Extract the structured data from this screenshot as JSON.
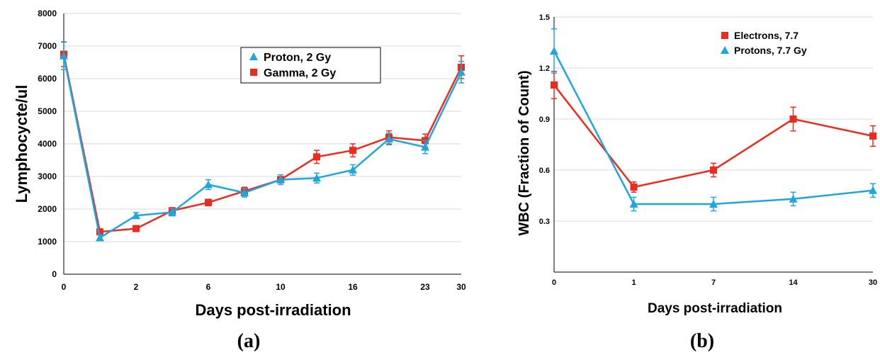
{
  "chart_data": [
    {
      "type": "line",
      "panel_label": "(a)",
      "ylabel": "Lymphocycte/ul",
      "xlabel": "Days post-irradiation",
      "ylim": [
        0,
        8000
      ],
      "yticks": [
        "0",
        "1000",
        "2000",
        "3000",
        "4000",
        "5000",
        "6000",
        "7000",
        "8000"
      ],
      "xtick_labels": [
        "0",
        "2",
        "6",
        "10",
        "16",
        "23",
        "30"
      ],
      "grid": "horizontal",
      "legend_position": "top-right",
      "colors": {
        "Proton, 2 Gy": "#1fa6db",
        "Gamma, 2 Gy": "#ee2a1f"
      },
      "series": [
        {
          "name": "Proton, 2 Gy",
          "marker": "triangle",
          "values": [
            6700,
            1120,
            1800,
            1900,
            2750,
            2500,
            2900,
            2950,
            3200,
            4150,
            3900,
            6200
          ],
          "errors": [
            420,
            80,
            90,
            110,
            150,
            130,
            150,
            150,
            160,
            180,
            200,
            330
          ]
        },
        {
          "name": "Gamma, 2 Gy",
          "marker": "square",
          "values": [
            6750,
            1300,
            1400,
            1950,
            2200,
            2550,
            2900,
            3600,
            3800,
            4200,
            4100,
            6350
          ],
          "errors": [
            380,
            70,
            60,
            90,
            100,
            120,
            100,
            200,
            200,
            200,
            200,
            350
          ]
        }
      ]
    },
    {
      "type": "line",
      "panel_label": "(b)",
      "ylabel": "WBC (Fraction of Count)",
      "xlabel": "Days post-irradiation",
      "ylim": [
        0,
        1.5
      ],
      "yticks": [
        "0.3",
        "0.6",
        "0.9",
        "1.2",
        "1.5"
      ],
      "categories": [
        "0",
        "1",
        "7",
        "14",
        "30"
      ],
      "grid": "horizontal",
      "legend_position": "top-right",
      "colors": {
        "Electrons, 7.7": "#ee2a1f",
        "Protons, 7.7 Gy": "#1fa6db"
      },
      "series": [
        {
          "name": "Electrons, 7.7",
          "marker": "square",
          "values": [
            1.1,
            0.5,
            0.6,
            0.9,
            0.8
          ],
          "errors": [
            0.08,
            0.03,
            0.04,
            0.07,
            0.06
          ]
        },
        {
          "name": "Protons, 7.7 Gy",
          "marker": "triangle",
          "values": [
            1.3,
            0.4,
            0.4,
            0.43,
            0.48
          ],
          "errors": [
            0.13,
            0.04,
            0.04,
            0.04,
            0.04
          ]
        }
      ]
    }
  ]
}
